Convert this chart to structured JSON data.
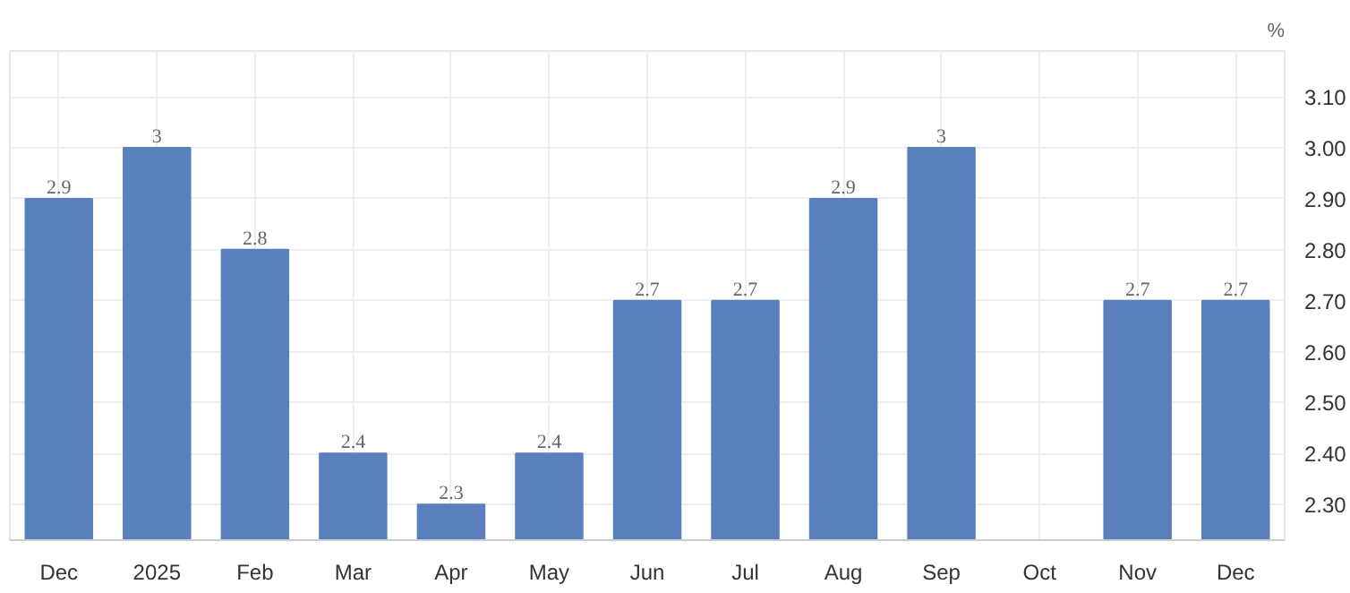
{
  "chart_data": {
    "type": "bar",
    "ylabel": "%",
    "categories": [
      "Dec",
      "2025",
      "Feb",
      "Mar",
      "Apr",
      "May",
      "Jun",
      "Jul",
      "Aug",
      "Sep",
      "Oct",
      "Nov",
      "Dec"
    ],
    "values": [
      2.9,
      3,
      2.8,
      2.4,
      2.3,
      2.4,
      2.7,
      2.7,
      2.9,
      3,
      null,
      2.7,
      2.7
    ],
    "color": "#5a7fbd",
    "ylim": [
      2.23,
      3.19
    ],
    "yticks": [
      {
        "value": 2.3,
        "label": "2.30"
      },
      {
        "value": 2.4,
        "label": "2.40"
      },
      {
        "value": 2.5,
        "label": "2.50"
      },
      {
        "value": 2.6,
        "label": "2.60"
      },
      {
        "value": 2.7,
        "label": "2.70"
      },
      {
        "value": 2.8,
        "label": "2.80"
      },
      {
        "value": 2.9,
        "label": "2.90"
      },
      {
        "value": 3.0,
        "label": "3.00"
      },
      {
        "value": 3.1,
        "label": "3.10"
      }
    ],
    "grid": true,
    "data_labels": true
  }
}
